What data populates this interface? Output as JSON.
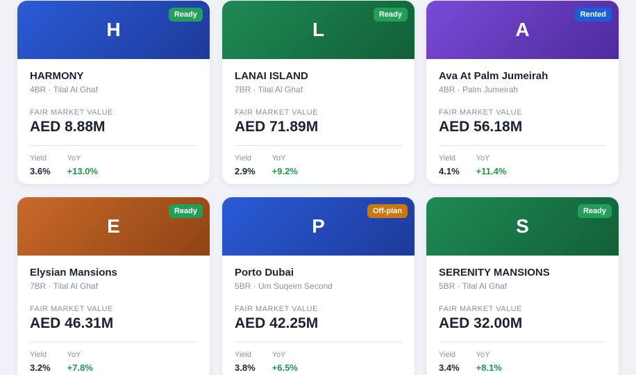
{
  "labels": {
    "fmv": "FAIR MARKET VALUE",
    "yield": "Yield",
    "yoy": "YoY"
  },
  "cards": [
    {
      "initial": "H",
      "status": "Ready",
      "name": "HARMONY",
      "details": "4BR · Tilal Al Ghaf",
      "value": "AED 8.88M",
      "yield": "3.6%",
      "yoy": "+13.0%",
      "color": [
        "#2a5bd7",
        "#1e3a9a"
      ],
      "status_color": "#22a05a"
    },
    {
      "initial": "L",
      "status": "Ready",
      "name": "LANAI ISLAND",
      "details": "7BR · Tilal Al Ghaf",
      "value": "AED 71.89M",
      "yield": "2.9%",
      "yoy": "+9.2%",
      "color": [
        "#1e8a55",
        "#125f38"
      ],
      "status_color": "#22a05a"
    },
    {
      "initial": "A",
      "status": "Rented",
      "name": "Ava At Palm Jumeirah",
      "details": "4BR · Palm Jumeirah",
      "value": "AED 56.18M",
      "yield": "4.1%",
      "yoy": "+11.4%",
      "color": [
        "#7b4ad6",
        "#4e2a9e"
      ],
      "status_color": "#1a5fd8"
    },
    {
      "initial": "E",
      "status": "Ready",
      "name": "Elysian Mansions",
      "details": "7BR · Tilal Al Ghaf",
      "value": "AED 46.31M",
      "yield": "3.2%",
      "yoy": "+7.8%",
      "color": [
        "#c9692a",
        "#8e4314"
      ],
      "status_color": "#22a05a"
    },
    {
      "initial": "P",
      "status": "Off-plan",
      "name": "Porto Dubai",
      "details": "5BR · Um Suqeim Second",
      "value": "AED 42.25M",
      "yield": "3.8%",
      "yoy": "+6.5%",
      "color": [
        "#2a5bd7",
        "#1e3a9a"
      ],
      "status_color": "#c8780e"
    },
    {
      "initial": "S",
      "status": "Ready",
      "name": "SERENITY MANSIONS",
      "details": "5BR · Tilal Al Ghaf",
      "value": "AED 32.00M",
      "yield": "3.4%",
      "yoy": "+8.1%",
      "color": [
        "#1e8a55",
        "#125f38"
      ],
      "status_color": "#22a05a"
    }
  ]
}
